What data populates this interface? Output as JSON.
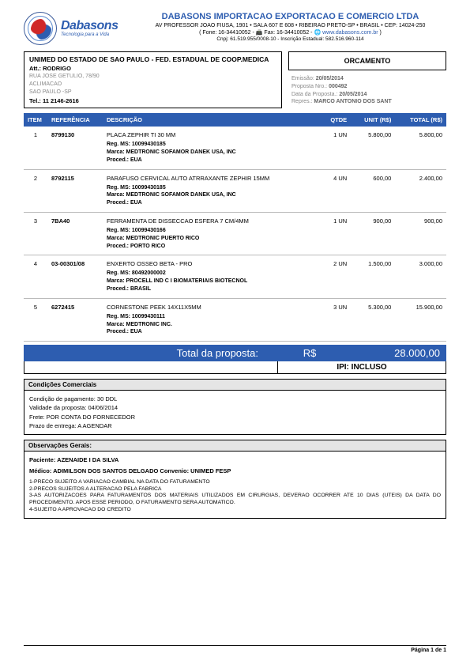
{
  "logo": {
    "name": "Dabasons",
    "tagline": "Tecnologia para a Vida"
  },
  "company": {
    "name": "DABASONS IMPORTACAO EXPORTACAO E COMERCIO LTDA",
    "address": "AV PROFESSOR JOAO FIUSA, 1901 • SALA 607 E 608 • RIBEIRAO PRETO-SP • BRASIL • CEP: 14024-250",
    "phone_line": "( Fone: 16-34410052 - 📠 Fax: 16-34410052 - 🌐 ",
    "website": "www.dabasons.com.br",
    "phone_close": " )",
    "cnpj_line": "Cnpj: 61.519.955/0008-10 - Inscrição Estadual: 582.516.960-114"
  },
  "client": {
    "name": "UNIMED DO ESTADO DE SAO PAULO - FED. ESTADUAL DE COOP.MEDICA",
    "att": "Att.: RODRIGO",
    "street": "RUA JOSE GETULIO, 78/90",
    "district": "ACLIMACAO",
    "city": "SAO PAULO -SP",
    "tel": "Tel.: 11 2146-2616"
  },
  "orcamento_label": "ORCAMENTO",
  "meta": {
    "emissao_lbl": "Emissão:",
    "emissao": "20/05/2014",
    "proposta_lbl": "Proposta Nro.:",
    "proposta": "000492",
    "data_lbl": "Data da Proposta.:",
    "data": "20/05/2014",
    "repres_lbl": "Repres.:",
    "repres": "MARCO ANTONIO DOS SANT"
  },
  "table": {
    "headers": {
      "item": "ITEM",
      "ref": "REFERÊNCIA",
      "desc": "DESCRIÇÃO",
      "qtde": "QTDE",
      "unit": "UNIT (R$)",
      "total": "TOTAL (R$)"
    },
    "rows": [
      {
        "n": "1",
        "ref": "8799130",
        "desc": "PLACA ZEPHIR TI 30 MM",
        "qtde": "1 UN",
        "unit": "5.800,00",
        "total": "5.800,00",
        "reg": "Reg. MS: 10099430185",
        "marca": "Marca: MEDTRONIC SOFAMOR DANEK USA, INC",
        "proced": "Proced.: EUA"
      },
      {
        "n": "2",
        "ref": "8792115",
        "desc": "PARAFUSO CERVICAL AUTO ATRRAXANTE ZEPHIR 15MM",
        "qtde": "4 UN",
        "unit": "600,00",
        "total": "2.400,00",
        "reg": "Reg. MS: 10099430185",
        "marca": "Marca: MEDTRONIC SOFAMOR DANEK USA, INC",
        "proced": "Proced.: EUA"
      },
      {
        "n": "3",
        "ref": "7BA40",
        "desc": "FERRAMENTA DE DISSECCAO ESFERA 7 CM/4MM",
        "qtde": "1 UN",
        "unit": "900,00",
        "total": "900,00",
        "reg": "Reg. MS: 10099430166",
        "marca": "Marca: MEDTRONIC PUERTO RICO",
        "proced": "Proced.: PORTO RICO"
      },
      {
        "n": "4",
        "ref": "03-00301/08",
        "desc": "ENXERTO OSSEO BETA - PRO",
        "qtde": "2 UN",
        "unit": "1.500,00",
        "total": "3.000,00",
        "reg": "Reg. MS: 80492000002",
        "marca": "Marca: PROCELL IND C I BIOMATERIAIS BIOTECNOL",
        "proced": "Proced.: BRASIL"
      },
      {
        "n": "5",
        "ref": "6272415",
        "desc": "CORNESTONE PEEK 14X11X5MM",
        "qtde": "3 UN",
        "unit": "5.300,00",
        "total": "15.900,00",
        "reg": "Reg. MS: 10099430111",
        "marca": "Marca: MEDTRONIC INC.",
        "proced": "Proced.: EUA"
      }
    ]
  },
  "total": {
    "label": "Total da proposta:",
    "currency": "R$",
    "amount": "28.000,00",
    "ipi": "IPI: INCLUSO"
  },
  "condicoes": {
    "title": "Condições Comerciais",
    "l1": "Condição de pagamento: 30 DDL",
    "l2": "Validade da proposta: 04/06/2014",
    "l3": "Frete: POR CONTA DO FORNECEDOR",
    "l4": "Prazo de entrega: A AGENDAR"
  },
  "obs": {
    "title": "Observações Gerais:",
    "paciente": "Paciente: AZENAIDE I DA SILVA",
    "medico": "Médico: ADIMILSON DOS SANTOS DELGADO    Convenio: UNIMED FESP",
    "n1": "1-PRECO SUJEITO A VARIACAO CAMBIAL NA DATA DO FATURAMENTO",
    "n2": "2-PRECOS SUJEITOS A ALTERACAO PELA FABRICA",
    "n3": "3-AS AUTORIZACOES PARA FATURAMENTOS DOS MATERIAIS UTILIZADOS EM CIRURGIAS, DEVERAO OCORRER ATE 10 DIAS (UTEIS) DA DATA DO PROCEDIMENTO. APOS ESSE PERIODO, O FATURAMENTO SERA AUTOMATICO.",
    "n4": "4-SUJEITO A APROVACAO DO CREDITO"
  },
  "footer": "Página 1 de 1",
  "colors": {
    "primary": "#2d5db0",
    "header_gray": "#e5e5e5",
    "muted": "#888888",
    "background": "#ffffff"
  }
}
